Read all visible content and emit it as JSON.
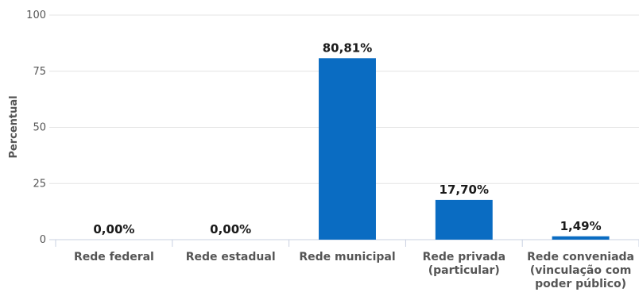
{
  "chart_data": {
    "type": "bar",
    "title": "",
    "xlabel": "",
    "ylabel": "Percentual",
    "ylim": [
      0,
      100
    ],
    "yticks": [
      "0",
      "25",
      "50",
      "75",
      "100"
    ],
    "categories": [
      [
        "Rede federal"
      ],
      [
        "Rede estadual"
      ],
      [
        "Rede municipal"
      ],
      [
        "Rede privada",
        "(particular)"
      ],
      [
        "Rede conveniada",
        "(vinculação com",
        "poder público)"
      ]
    ],
    "values": [
      0.0,
      0.0,
      80.81,
      17.7,
      1.49
    ],
    "data_labels": [
      "0,00%",
      "0,00%",
      "80,81%",
      "17,70%",
      "1,49%"
    ],
    "bar_color": "#0a6cc2",
    "grid": true,
    "legend": "none"
  }
}
